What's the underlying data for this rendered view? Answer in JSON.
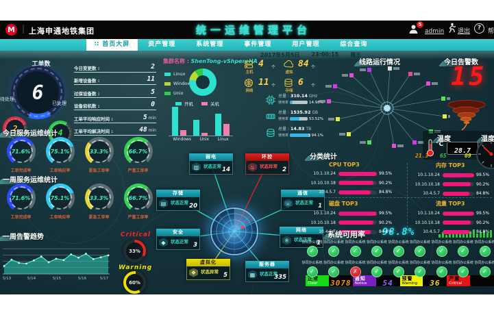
{
  "header": {
    "org": "上海申通地铁集团",
    "title": "统一运维管理平台",
    "user": "admin",
    "badge": "5",
    "logout": "退出",
    "help": "帮"
  },
  "nav": {
    "tabs": [
      {
        "label": "首页大屏",
        "active": true
      },
      {
        "label": "资产管理"
      },
      {
        "label": "系统管理"
      },
      {
        "label": "事件管理"
      },
      {
        "label": "用户管理"
      },
      {
        "label": "综合查询"
      }
    ],
    "date": "2017年5月5日",
    "time": "23:00:15",
    "weekday": "周五"
  },
  "workorder": {
    "title": "工单数",
    "total": "6",
    "pending_label": "待处理",
    "pending": "2",
    "done_label": "已处理",
    "done": "4"
  },
  "stats": [
    {
      "label": "今日变更数 :",
      "value": "2",
      "unit": ""
    },
    {
      "label": "新增设备数 :",
      "value": "11",
      "unit": ""
    },
    {
      "label": "过保设备数 :",
      "value": "5",
      "unit": ""
    },
    {
      "label": "设备宕机数 :",
      "value": "0",
      "unit": ""
    },
    {
      "label": "工单平均响应时间 :",
      "value": "5",
      "unit": "min"
    },
    {
      "label": "工单平均解决时间 :",
      "value": "48",
      "unit": "min"
    }
  ],
  "service": {
    "today_title": "今日服务运维统计",
    "week_title": "一周服务运维统计",
    "gauges": [
      {
        "value": 71.6,
        "label": "工单完成率",
        "color": "#2b4bff"
      },
      {
        "value": 75.1,
        "label": "工单响应率",
        "color": "#35c8f0"
      },
      {
        "value": 33.3,
        "label": "紧急工单率",
        "color": "#e8d435"
      },
      {
        "value": 66.7,
        "label": "严重工单率",
        "color": "#38d052"
      }
    ]
  },
  "trend": {
    "title": "一周告警趋势",
    "critical_label": "Critical",
    "critical_value": "33%",
    "warning_label": "Warning",
    "warning_value": "60%"
  },
  "cluster": {
    "name_label": "集群名称 :",
    "name": "ShenTong-vShpereHA",
    "donut_legend": [
      {
        "label": "Linux",
        "color": "#2ee0d0"
      },
      {
        "label": "Windows",
        "color": "#b8d832"
      },
      {
        "label": "Unix",
        "color": "#2ecc40"
      }
    ],
    "bar_legend": [
      {
        "label": "开机",
        "color": "#2ee0d0"
      },
      {
        "label": "关机",
        "color": "#f07fb0"
      }
    ],
    "counts": [
      {
        "label": "主机",
        "value": "4",
        "unit": "个"
      },
      {
        "label": "网络",
        "value": "11",
        "unit": "个"
      },
      {
        "label": "虚拟",
        "value": "84",
        "unit": "个"
      },
      {
        "label": "存储",
        "value": "6",
        "unit": "个"
      }
    ],
    "resources": [
      {
        "total_label": "总量 :",
        "total": "310.14",
        "unit": "GHz",
        "usage_label": "使用率",
        "usage": 14.98
      },
      {
        "total_label": "总量 :",
        "total": "1535.92",
        "unit": "GB",
        "usage_label": "使用率",
        "usage": 53.52
      },
      {
        "total_label": "总量 :",
        "total": "14.83",
        "unit": "TB",
        "usage_label": "使用率",
        "usage": 94.1
      }
    ]
  },
  "topology": {
    "status_ok": "状态正常",
    "status_err": "状态异常",
    "nodes": [
      {
        "name": "弱电",
        "state": "ok",
        "value": "14"
      },
      {
        "name": "环控",
        "state": "error",
        "value": "2"
      },
      {
        "name": "存储",
        "state": "ok",
        "value": "20"
      },
      {
        "name": "通信",
        "state": "ok",
        "value": "1"
      },
      {
        "name": "安全",
        "state": "ok",
        "value": "3"
      },
      {
        "name": "网络",
        "state": "ok",
        "value": "1"
      },
      {
        "name": "虚拟化",
        "state": "warn",
        "value": "5"
      },
      {
        "name": "服务器",
        "state": "ok",
        "value": "335"
      }
    ]
  },
  "lines": {
    "title": "线路运行情况",
    "nodes": [
      {
        "color": "#e84ad8"
      },
      {
        "color": "#e8e84a"
      },
      {
        "color": "#d23ae8"
      },
      {
        "color": "#e84ad8"
      },
      {
        "color": "#b83ae8"
      },
      {
        "color": "#e0e0e0"
      },
      {
        "color": "#e84a9a"
      },
      {
        "color": "#e84ad8"
      },
      {
        "color": "#48e858"
      },
      {
        "color": "#e8e84a"
      },
      {
        "color": "#48e858"
      },
      {
        "color": "#d23ae8"
      },
      {
        "color": "#e84ad8"
      },
      {
        "color": "#48e858"
      },
      {
        "color": "#e8e84a"
      }
    ]
  },
  "alarms": {
    "title": "今日告警数",
    "value": "15",
    "temp_title": "温度",
    "temp_unit": "°C",
    "temp_value": "28.7",
    "hum_title": "湿度",
    "aux": [
      {
        "value": "21.3",
        "color": "#ff9100"
      },
      {
        "value": "65",
        "color": "#2ec850"
      },
      {
        "value": "09",
        "color": "#e8e000"
      }
    ]
  },
  "category": {
    "title": "分类统计",
    "groups": [
      {
        "title": "CPU TOP3",
        "rows": [
          {
            "ip": "10.1.10.24",
            "pct": 99.5
          },
          {
            "ip": "10.10.10.18",
            "pct": 90.2
          },
          {
            "ip": "10.4.5.7",
            "pct": 84.8
          }
        ]
      },
      {
        "title": "内存 TOP3",
        "rows": [
          {
            "ip": "10.1.10.24",
            "pct": 99.5
          },
          {
            "ip": "10.10.10.18",
            "pct": 90.2
          },
          {
            "ip": "10.4.5.7",
            "pct": 84.8
          }
        ]
      },
      {
        "title": "磁盘 TOP3",
        "rows": [
          {
            "ip": "10.1.10.24",
            "pct": 99.5
          },
          {
            "ip": "10.10.10.18",
            "pct": 90.2
          },
          {
            "ip": "10.4.5.7",
            "pct": 84.8
          }
        ]
      },
      {
        "title": "流量 TOP3",
        "rows": [
          {
            "ip": "10.1.10.24",
            "pct": 99.5
          },
          {
            "ip": "10.10.10.18",
            "pct": 90.2
          },
          {
            "ip": "10.4.5.7",
            "pct": 84.8
          }
        ]
      }
    ]
  },
  "availability": {
    "title": "系统可用率",
    "value": "98.8%",
    "item_label": "协同办公系统",
    "rows": [
      [
        "ok",
        "ok",
        "ok",
        "ok",
        "ok",
        "ok",
        "ok",
        "ok",
        "ok"
      ],
      [
        "ok",
        "ok",
        "fail",
        "ok",
        "ok",
        "ok",
        "ok",
        "ok",
        "ok"
      ]
    ]
  },
  "statusbar": [
    {
      "zh": "正常",
      "en": "Clear",
      "value": "3078",
      "bg": "#18d818",
      "zh_color": "#000",
      "en_color": "#fff",
      "num_color": "#ff9100"
    },
    {
      "zh": "通知",
      "en": "Notice",
      "value": "54",
      "bg": "#7a1fc0",
      "zh_color": "#fff",
      "en_color": "#fff",
      "num_color": "#9a5cff"
    },
    {
      "zh": "预警",
      "en": "Warning",
      "value": "36",
      "bg": "#f0f000",
      "zh_color": "#000",
      "en_color": "#000",
      "num_color": "#f0e000"
    },
    {
      "zh": "严重",
      "en": "Critical",
      "value": "",
      "bg": "#e81414",
      "zh_color": "#000",
      "en_color": "#fff",
      "num_color": "#ff3030"
    }
  ],
  "chart_data": [
    {
      "type": "pie",
      "title": "集群操作系统分布",
      "labels": [
        "Linux",
        "Windows",
        "Unix"
      ],
      "values": [
        78,
        12,
        10
      ]
    },
    {
      "type": "bar",
      "title": "开机/关机统计",
      "categories": [
        "Windows",
        "Unix",
        "Linux"
      ],
      "series": [
        {
          "name": "开机",
          "values": [
            40,
            22,
            30
          ]
        },
        {
          "name": "关机",
          "values": [
            8,
            4,
            16
          ]
        }
      ],
      "ylim": [
        0,
        40
      ]
    },
    {
      "type": "area",
      "title": "一周告警趋势",
      "x": [
        "5/13",
        "5/14",
        "5/15",
        "5/16",
        "5/17"
      ],
      "values": [
        2.5,
        4.5,
        3.5,
        3.3,
        4.3,
        5.5,
        3.7,
        4.8,
        4.4,
        6.2,
        5.2,
        6.4,
        4.7,
        5.3,
        5.9
      ],
      "ylim": [
        0,
        10
      ],
      "grid": true
    },
    {
      "type": "bar",
      "title": "CPU TOP3",
      "categories": [
        "10.1.10.24",
        "10.10.10.18",
        "10.4.5.7"
      ],
      "values": [
        99.5,
        90.2,
        84.8
      ],
      "xlabel": "",
      "ylabel": "%"
    },
    {
      "type": "bar",
      "title": "内存 TOP3",
      "categories": [
        "10.1.10.24",
        "10.10.10.18",
        "10.4.5.7"
      ],
      "values": [
        99.5,
        90.2,
        84.8
      ]
    },
    {
      "type": "bar",
      "title": "磁盘 TOP3",
      "categories": [
        "10.1.10.24",
        "10.10.10.18",
        "10.4.5.7"
      ],
      "values": [
        99.5,
        90.2,
        84.8
      ]
    },
    {
      "type": "bar",
      "title": "流量 TOP3",
      "categories": [
        "10.1.10.24",
        "10.10.10.18",
        "10.4.5.7"
      ],
      "values": [
        99.5,
        90.2,
        84.8
      ]
    }
  ]
}
